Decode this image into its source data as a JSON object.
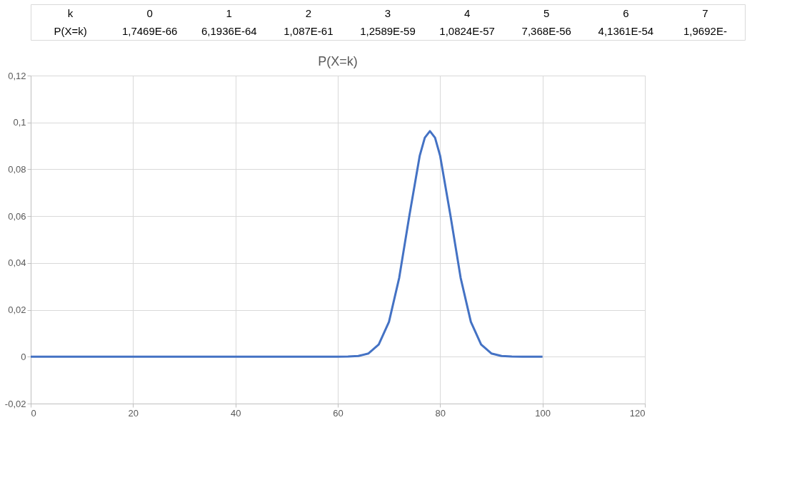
{
  "chart_data": {
    "type": "line",
    "title": "P(X=k)",
    "annotations": [
      "k",
      "0",
      "1",
      "2",
      "3",
      "4",
      "5",
      "6",
      "7",
      "P(X=k)",
      "1,7469E-66",
      "6,1936E-64",
      "1,087E-61",
      "1,2589E-59",
      "1,0824E-57",
      "7,368E-56",
      "4,1361E-54",
      "1,9692E-"
    ],
    "series": [
      {
        "color": "#4472c4",
        "x": [
          0,
          10,
          20,
          30,
          40,
          50,
          60,
          62,
          64,
          66,
          68,
          70,
          72,
          74,
          76,
          77,
          78,
          79,
          80,
          82,
          84,
          86,
          88,
          90,
          92,
          94,
          96,
          100
        ],
        "values": [
          0,
          0,
          0,
          0,
          0,
          0,
          0,
          0.0001,
          0.0003,
          0.0014,
          0.0052,
          0.0149,
          0.0337,
          0.0604,
          0.0857,
          0.0935,
          0.0963,
          0.0935,
          0.0857,
          0.0604,
          0.0337,
          0.0149,
          0.0052,
          0.0014,
          0.0003,
          0.0001,
          0,
          0
        ]
      }
    ],
    "xlim": [
      0,
      120
    ],
    "xticks": [
      0,
      20,
      40,
      60,
      80,
      100,
      120
    ],
    "ylim": [
      -0.02,
      0.12
    ],
    "yticks": [
      {
        "value": -0.02,
        "label": "-0,02"
      },
      {
        "value": 0,
        "label": "0"
      },
      {
        "value": 0.02,
        "label": "0,02"
      },
      {
        "value": 0.04,
        "label": "0,04"
      },
      {
        "value": 0.06,
        "label": "0,06"
      },
      {
        "value": 0.08,
        "label": "0,08"
      },
      {
        "value": 0.1,
        "label": "0,1"
      },
      {
        "value": 0.12,
        "label": "0,12"
      }
    ],
    "grid": true,
    "marker": "none",
    "line_style": "solid"
  }
}
